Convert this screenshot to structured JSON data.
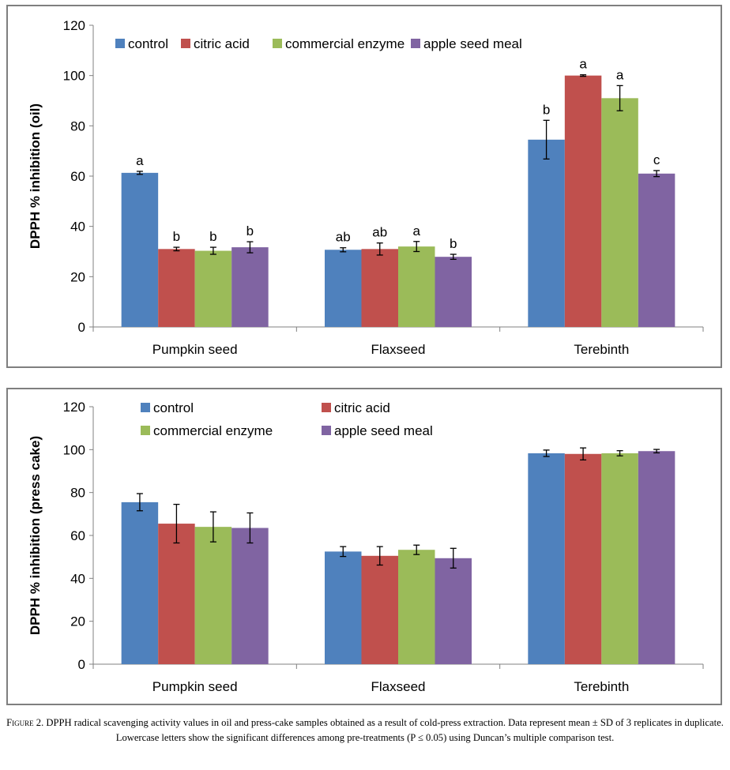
{
  "chart_data": [
    {
      "type": "bar",
      "ylabel": "DPPH % inhibition (oil)",
      "ylim": [
        0,
        120
      ],
      "yticks": [
        0,
        20,
        40,
        60,
        80,
        100,
        120
      ],
      "categories": [
        "Pumpkin seed",
        "Flaxseed",
        "Terebinth"
      ],
      "legend_placement": "top-inside, single row",
      "series": [
        {
          "name": "control",
          "color": "#4f81bd",
          "values": [
            61.3,
            30.7,
            74.5
          ],
          "errors": [
            0.6,
            0.8,
            7.7
          ],
          "letters": [
            "a",
            "ab",
            "b"
          ]
        },
        {
          "name": "citric acid",
          "color": "#c0504d",
          "values": [
            31.0,
            31.0,
            100.0
          ],
          "errors": [
            0.7,
            2.4,
            0.3
          ],
          "letters": [
            "b",
            "ab",
            "a"
          ]
        },
        {
          "name": "commercial enzyme",
          "color": "#9bbb59",
          "values": [
            30.3,
            32.0,
            91.0
          ],
          "errors": [
            1.4,
            2.0,
            5.0
          ],
          "letters": [
            "b",
            "a",
            "a"
          ]
        },
        {
          "name": "apple seed meal",
          "color": "#8064a2",
          "values": [
            31.7,
            27.9,
            61.0
          ],
          "errors": [
            2.2,
            1.0,
            1.2
          ],
          "letters": [
            "b",
            "b",
            "c"
          ]
        }
      ]
    },
    {
      "type": "bar",
      "ylabel": "DPPH % inhibition (press cake)",
      "ylim": [
        0,
        120
      ],
      "yticks": [
        0,
        20,
        40,
        60,
        80,
        100,
        120
      ],
      "categories": [
        "Pumpkin seed",
        "Flaxseed",
        "Terebinth"
      ],
      "legend_placement": "top-inside, two rows",
      "series": [
        {
          "name": "control",
          "color": "#4f81bd",
          "values": [
            75.5,
            52.5,
            98.3
          ],
          "errors": [
            4.0,
            2.3,
            1.5
          ]
        },
        {
          "name": "citric acid",
          "color": "#c0504d",
          "values": [
            65.5,
            50.5,
            98.0
          ],
          "errors": [
            9.0,
            4.3,
            2.8
          ]
        },
        {
          "name": "commercial enzyme",
          "color": "#9bbb59",
          "values": [
            64.0,
            53.3,
            98.3
          ],
          "errors": [
            7.0,
            2.2,
            1.2
          ]
        },
        {
          "name": "apple seed meal",
          "color": "#8064a2",
          "values": [
            63.5,
            49.4,
            99.3
          ],
          "errors": [
            7.0,
            4.6,
            0.8
          ]
        }
      ]
    }
  ],
  "caption": {
    "figure_label": "Figure 2.",
    "text": "DPPH radical scavenging activity values in oil and press-cake samples obtained as a result of cold-press extraction. Data represent mean ± SD of 3 replicates in duplicate. Lowercase letters show the significant differences among pre-treatments (P ≤ 0.05) using Duncan’s multiple comparison test."
  }
}
